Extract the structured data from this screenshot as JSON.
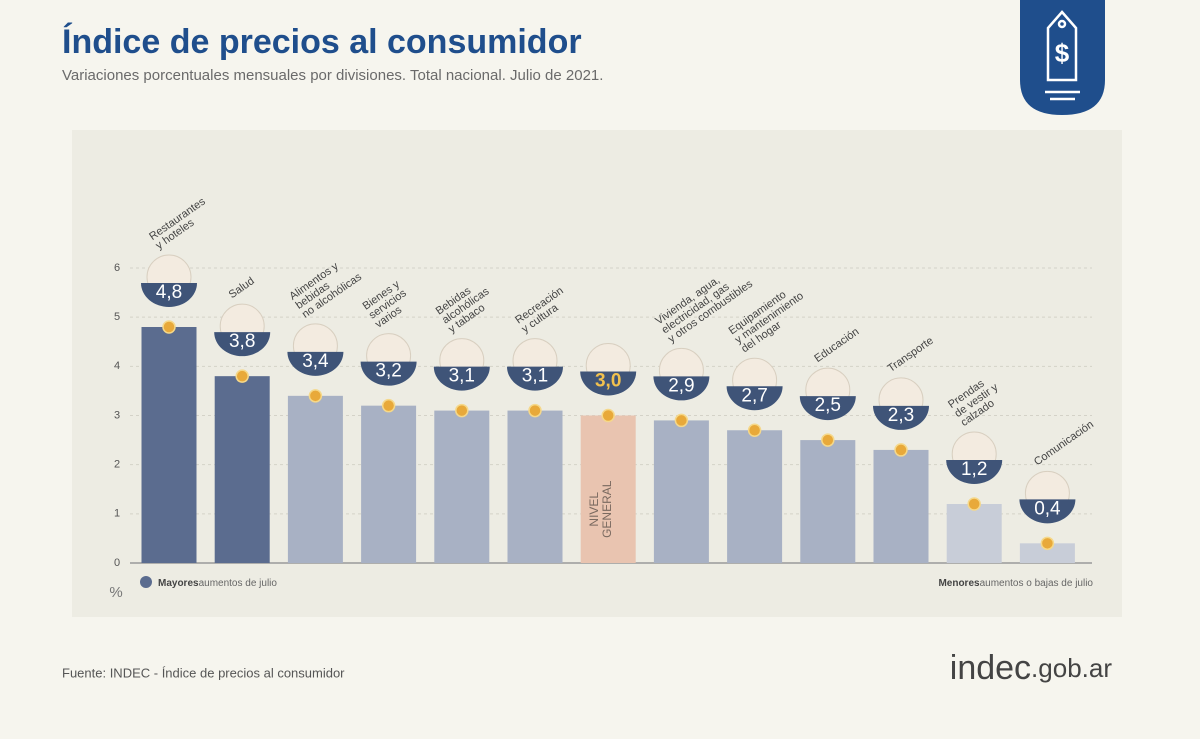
{
  "chart_data": {
    "type": "bar",
    "title": "Índice de precios al consumidor",
    "subtitle": "Variaciones porcentuales mensuales por divisiones. Total nacional. Julio de 2021.",
    "categories": [
      "Restaurantes\ny hoteles",
      "Salud",
      "Alimentos y\nbebidas\nno alcohólicas",
      "Bienes y\nservicios\nvarios",
      "Bebidas\nalcohólicas\ny tabaco",
      "Recreación\ny cultura",
      "NIVEL\nGENERAL",
      "Vivienda, agua,\nelectricidad, gas\ny otros combustibles",
      "Equipamiento\ny mantenimiento\ndel hogar",
      "Educación",
      "Transporte",
      "Prendas\nde vestir y\ncalzado",
      "Comunicación"
    ],
    "values": [
      4.8,
      3.8,
      3.4,
      3.2,
      3.1,
      3.1,
      3.0,
      2.9,
      2.7,
      2.5,
      2.3,
      1.2,
      0.4
    ],
    "value_labels": [
      "4,8",
      "3,8",
      "3,4",
      "3,2",
      "3,1",
      "3,1",
      "3,0",
      "2,9",
      "2,7",
      "2,5",
      "2,3",
      "1,2",
      "0,4"
    ],
    "colors": [
      "#5b6c8f",
      "#5b6c8f",
      "#a8b1c4",
      "#a8b1c4",
      "#a8b1c4",
      "#a8b1c4",
      "#e9c4b0",
      "#a8b1c4",
      "#a8b1c4",
      "#a8b1c4",
      "#a8b1c4",
      "#c8cdd8",
      "#c8cdd8"
    ],
    "ylim": [
      0,
      6
    ],
    "yticks": [
      0,
      1,
      2,
      3,
      4,
      5,
      6
    ],
    "grid": true,
    "y_unit": "%",
    "legend": [
      {
        "bold": "Mayores",
        "text": "aumentos de julio"
      },
      {
        "bold": "Menores",
        "text": "aumentos o bajas de julio"
      }
    ],
    "source": "Fuente: INDEC - Índice de precios al consumidor",
    "brand": {
      "main": "indec",
      "suffix": ".gob.ar"
    }
  }
}
